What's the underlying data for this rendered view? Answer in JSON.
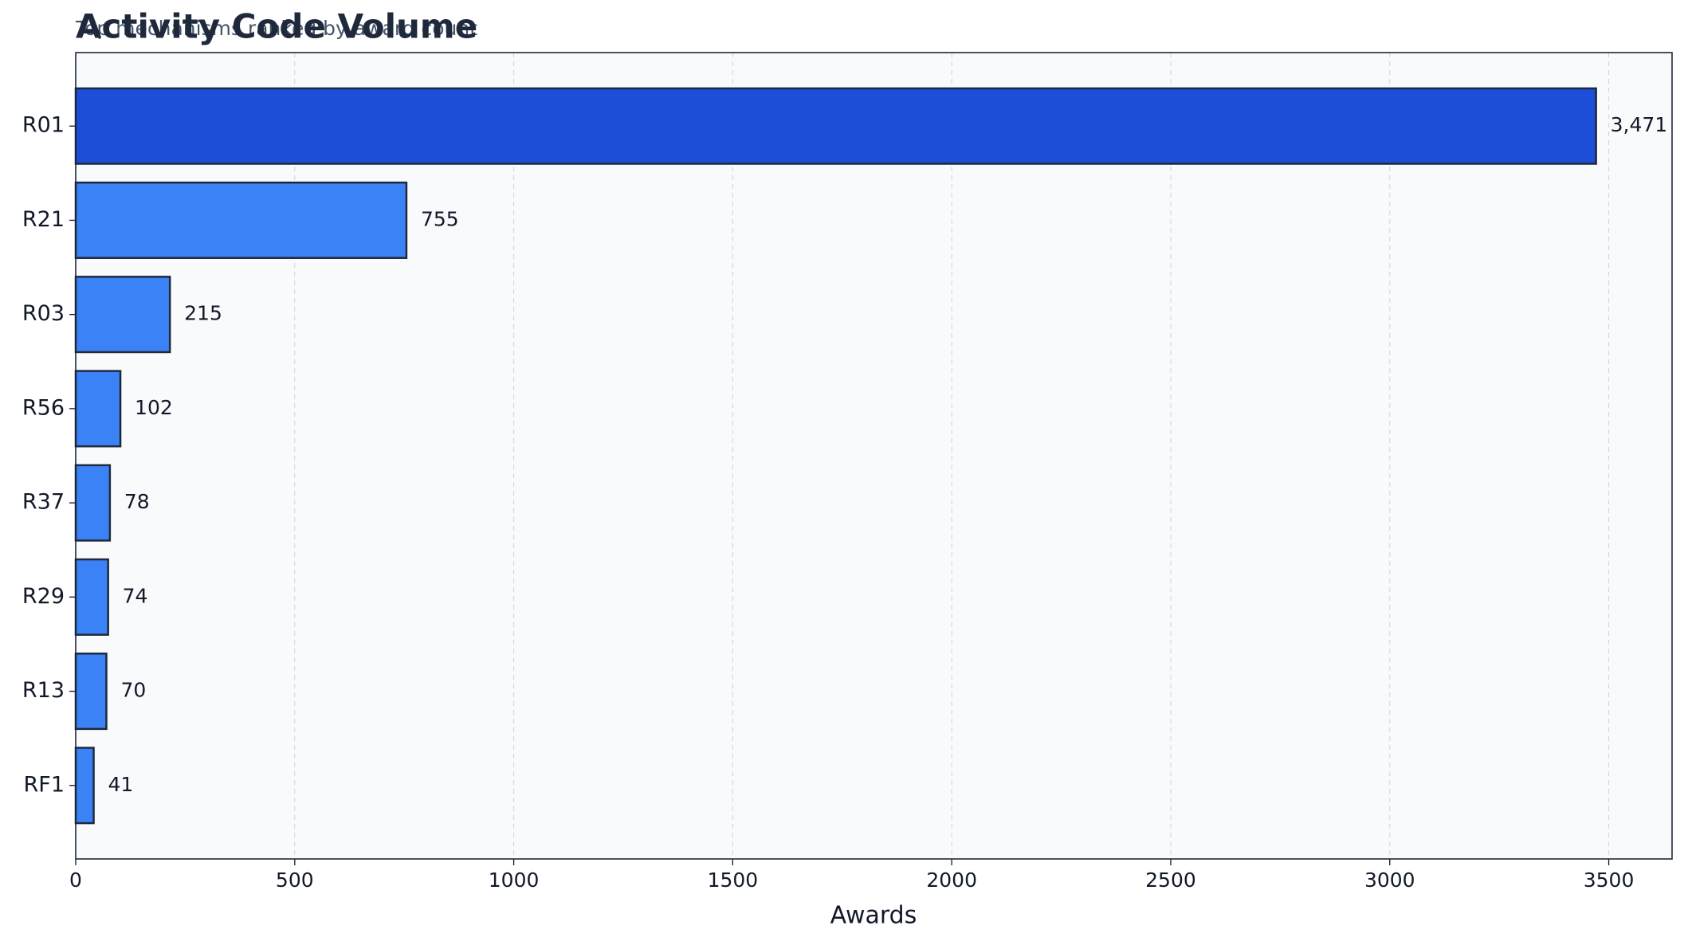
{
  "chart_data": {
    "type": "barh",
    "title": "Activity Code Volume",
    "subtitle": "Top mechanisms ranked by award count",
    "x_label": "Awards",
    "categories": [
      "R01",
      "R21",
      "R03",
      "R56",
      "R37",
      "R29",
      "R13",
      "RF1"
    ],
    "values": [
      3471,
      755,
      215,
      102,
      78,
      74,
      70,
      41
    ],
    "value_labels": [
      "3,471",
      "755",
      "215",
      "102",
      "78",
      "74",
      "70",
      "41"
    ],
    "colors": [
      "#1d4ed8",
      "#3b82f6",
      "#3b82f6",
      "#3b82f6",
      "#3b82f6",
      "#3b82f6",
      "#3b82f6",
      "#3b82f6"
    ],
    "xlim": [
      0,
      3644.55
    ],
    "xticks": [
      0,
      500,
      1000,
      1500,
      2000,
      2500,
      3000,
      3500
    ],
    "grid": true
  }
}
